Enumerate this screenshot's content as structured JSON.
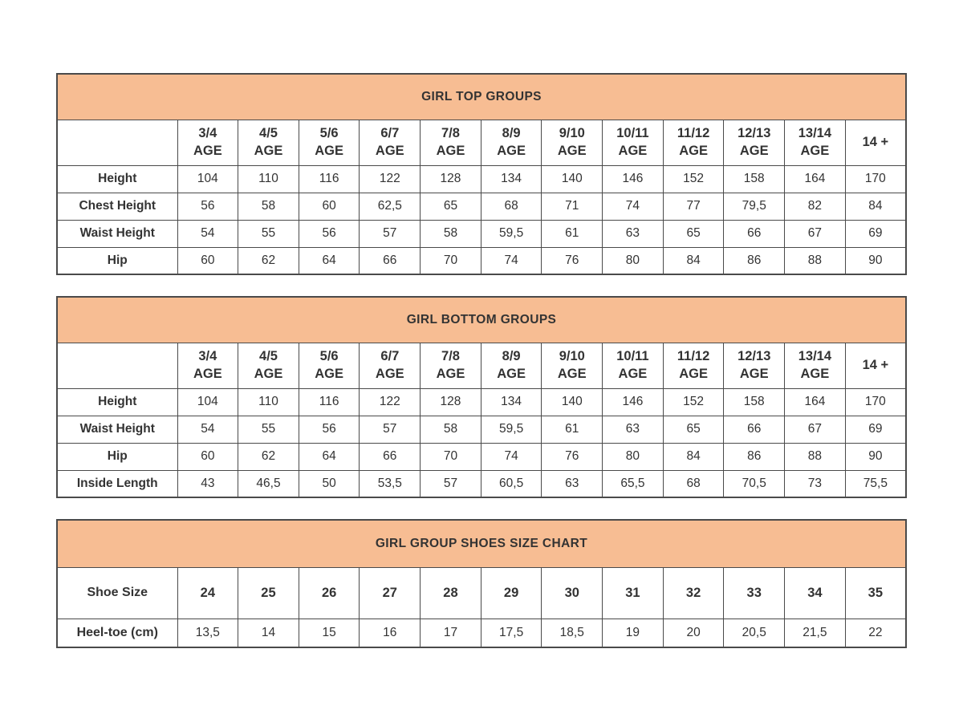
{
  "colors": {
    "band": "#F7BD93",
    "border": "#4A4A4A",
    "text": "#333333",
    "title": "#26211D",
    "page_bg": "#FFFFFF"
  },
  "tables": [
    {
      "title": "GIRL TOP GROUPS",
      "columns": [
        "3/4\nAGE",
        "4/5\nAGE",
        "5/6\nAGE",
        "6/7\nAGE",
        "7/8\nAGE",
        "8/9\nAGE",
        "9/10\nAGE",
        "10/11\nAGE",
        "11/12\nAGE",
        "12/13\nAGE",
        "13/14\nAGE",
        "14 +"
      ],
      "rows": [
        {
          "label": "Height",
          "values": [
            "104",
            "110",
            "116",
            "122",
            "128",
            "134",
            "140",
            "146",
            "152",
            "158",
            "164",
            "170"
          ]
        },
        {
          "label": "Chest Height",
          "values": [
            "56",
            "58",
            "60",
            "62,5",
            "65",
            "68",
            "71",
            "74",
            "77",
            "79,5",
            "82",
            "84"
          ]
        },
        {
          "label": "Waist Height",
          "values": [
            "54",
            "55",
            "56",
            "57",
            "58",
            "59,5",
            "61",
            "63",
            "65",
            "66",
            "67",
            "69"
          ]
        },
        {
          "label": "Hip",
          "values": [
            "60",
            "62",
            "64",
            "66",
            "70",
            "74",
            "76",
            "80",
            "84",
            "86",
            "88",
            "90"
          ]
        }
      ]
    },
    {
      "title": "GIRL BOTTOM GROUPS",
      "columns": [
        "3/4\nAGE",
        "4/5\nAGE",
        "5/6\nAGE",
        "6/7\nAGE",
        "7/8\nAGE",
        "8/9\nAGE",
        "9/10\nAGE",
        "10/11\nAGE",
        "11/12\nAGE",
        "12/13\nAGE",
        "13/14\nAGE",
        "14 +"
      ],
      "rows": [
        {
          "label": "Height",
          "values": [
            "104",
            "110",
            "116",
            "122",
            "128",
            "134",
            "140",
            "146",
            "152",
            "158",
            "164",
            "170"
          ]
        },
        {
          "label": "Waist Height",
          "values": [
            "54",
            "55",
            "56",
            "57",
            "58",
            "59,5",
            "61",
            "63",
            "65",
            "66",
            "67",
            "69"
          ]
        },
        {
          "label": "Hip",
          "values": [
            "60",
            "62",
            "64",
            "66",
            "70",
            "74",
            "76",
            "80",
            "84",
            "86",
            "88",
            "90"
          ]
        },
        {
          "label": "Inside Length",
          "values": [
            "43",
            "46,5",
            "50",
            "53,5",
            "57",
            "60,5",
            "63",
            "65,5",
            "68",
            "70,5",
            "73",
            "75,5"
          ]
        }
      ]
    },
    {
      "title": "GIRL GROUP SHOES SIZE CHART",
      "columns": null,
      "rows": [
        {
          "label": "Shoe Size",
          "bold": true,
          "values": [
            "24",
            "25",
            "26",
            "27",
            "28",
            "29",
            "30",
            "31",
            "32",
            "33",
            "34",
            "35"
          ]
        },
        {
          "label": "Heel-toe (cm)",
          "bold": false,
          "values": [
            "13,5",
            "14",
            "15",
            "16",
            "17",
            "17,5",
            "18,5",
            "19",
            "20",
            "20,5",
            "21,5",
            "22"
          ]
        }
      ]
    }
  ]
}
